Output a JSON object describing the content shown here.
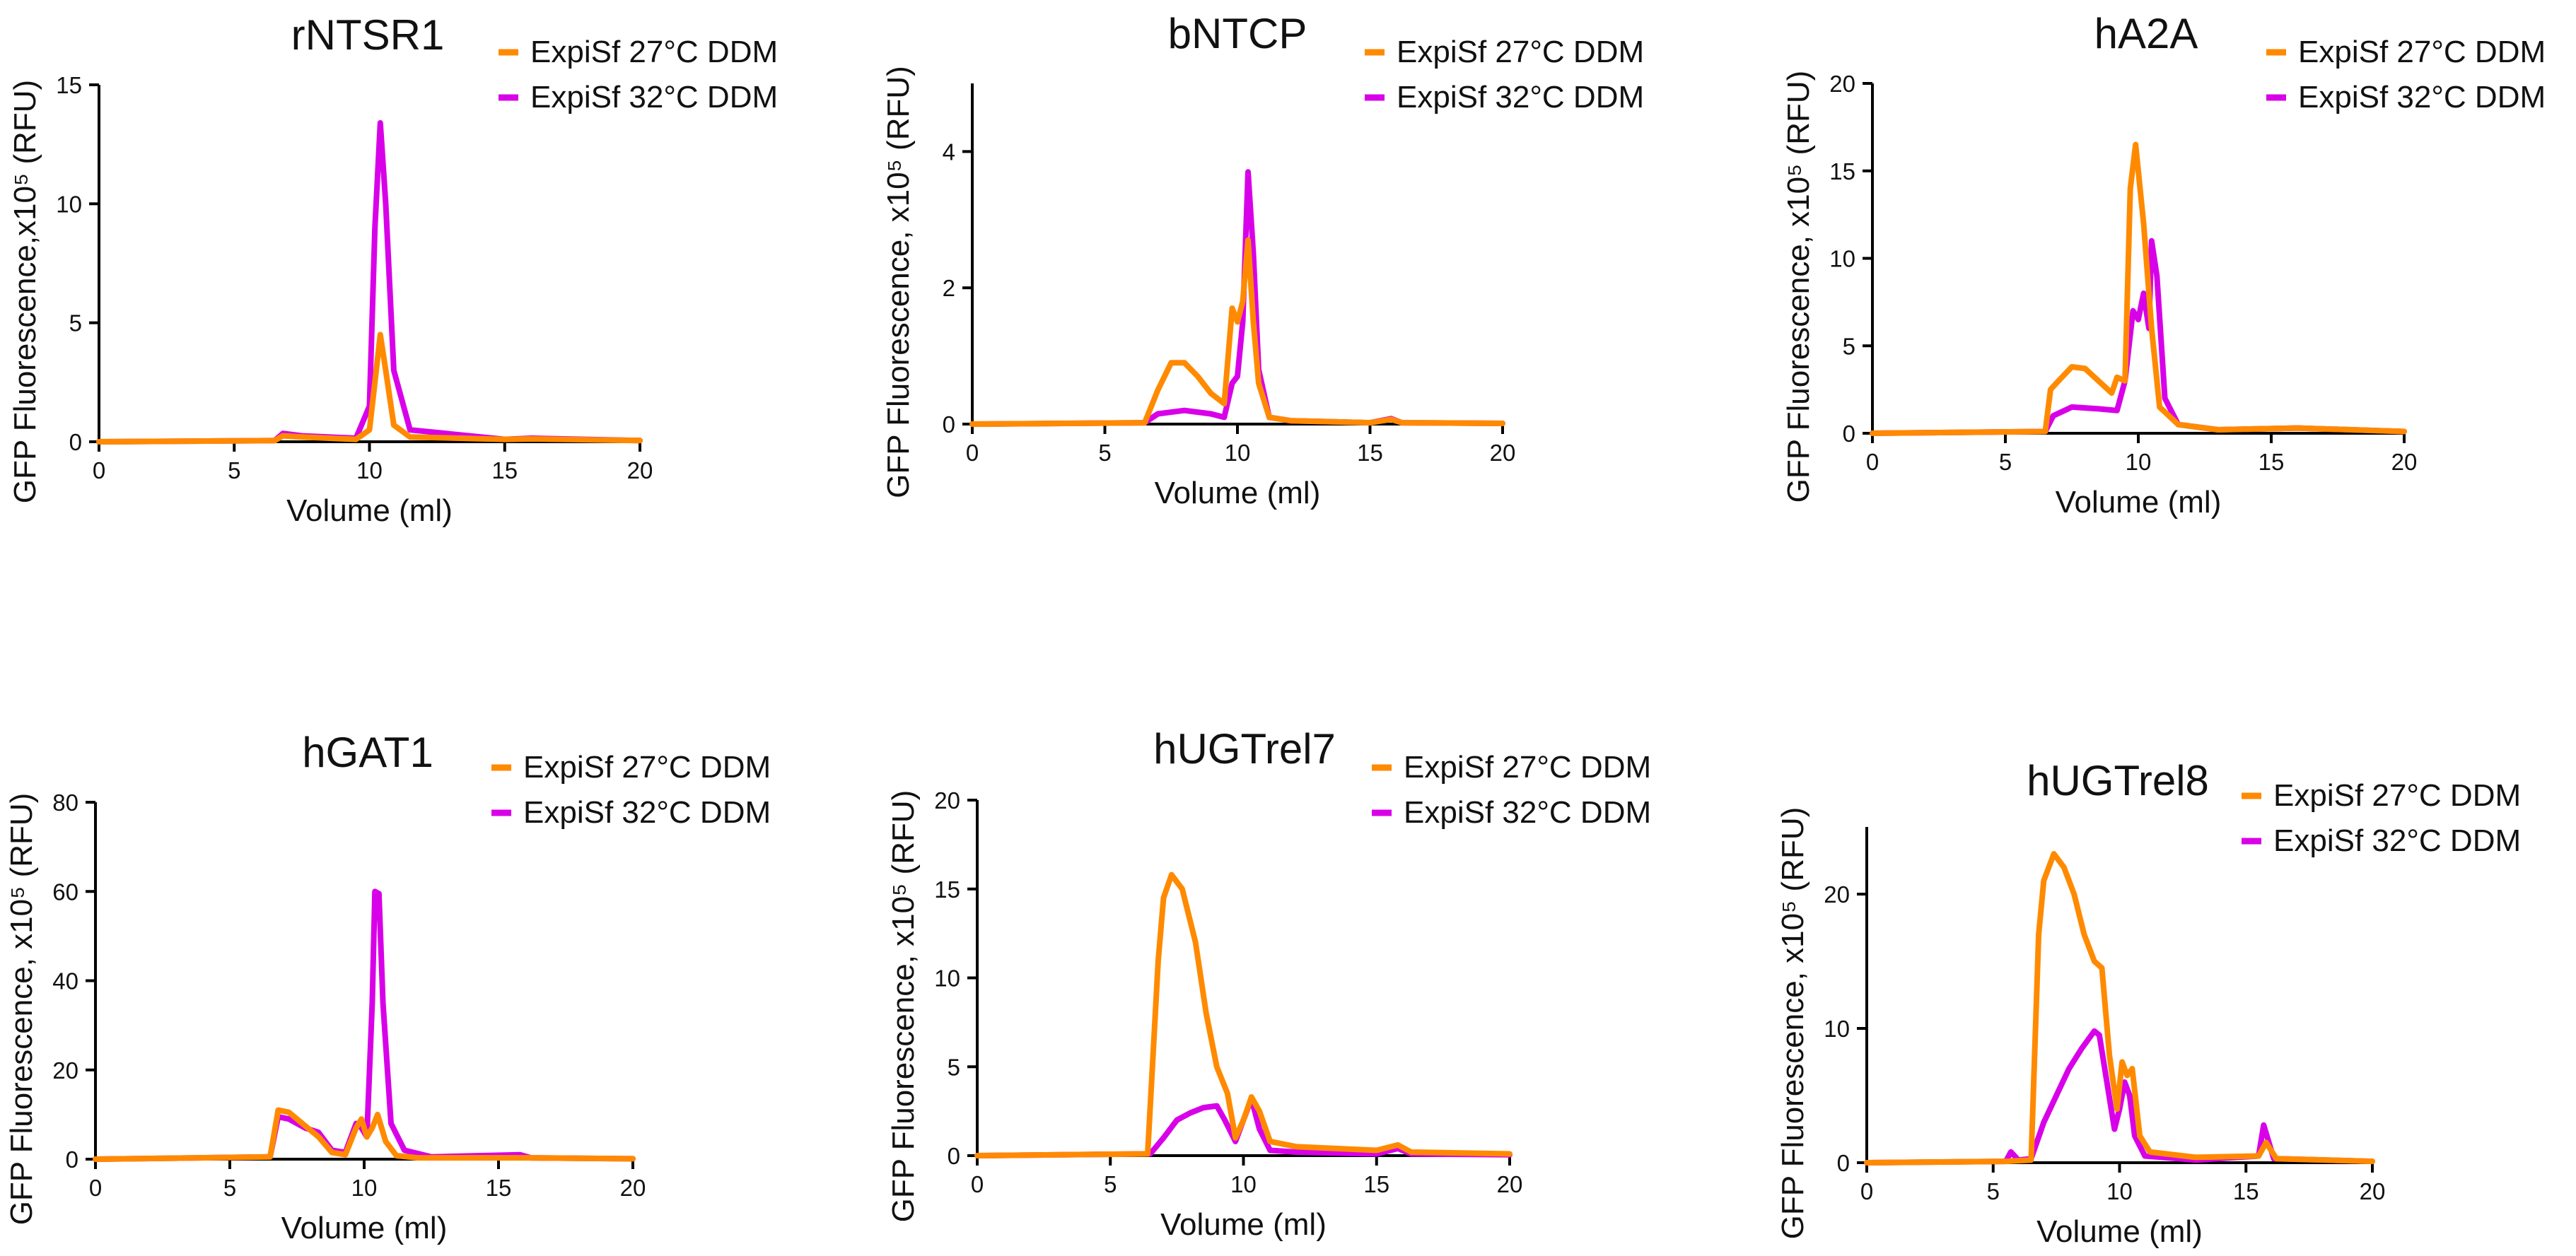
{
  "colors": {
    "s27": "#ff8a00",
    "s32": "#d800e8"
  },
  "legend": {
    "s27": "ExpiSf 27°C DDM",
    "s32": "ExpiSf 32°C DDM"
  },
  "chart_data": [
    {
      "type": "line",
      "title": "rNTSR1",
      "xlabel": "Volume (ml)",
      "ylabel": "GFP Fluorescence,x10⁵ (RFU)",
      "xlim": [
        0,
        20
      ],
      "ylim": [
        0,
        15
      ],
      "xticks": [
        "0",
        "5",
        "10",
        "15",
        "20"
      ],
      "yticks": [
        "0",
        "5",
        "10",
        "15"
      ],
      "series": [
        {
          "name": "ExpiSf 27°C DDM",
          "color": "#ff8a00",
          "x": [
            0,
            6.5,
            6.8,
            7.5,
            9.5,
            10.0,
            10.2,
            10.4,
            10.6,
            10.9,
            11.5,
            15.0,
            16.0,
            20.0
          ],
          "y": [
            0,
            0.05,
            0.25,
            0.2,
            0.1,
            0.5,
            2.5,
            4.5,
            3.0,
            0.7,
            0.2,
            0.1,
            0.12,
            0.05
          ]
        },
        {
          "name": "ExpiSf 32°C DDM",
          "color": "#d800e8",
          "x": [
            0,
            6.5,
            6.8,
            7.5,
            9.5,
            10.0,
            10.2,
            10.4,
            10.6,
            10.9,
            11.5,
            15.0,
            16.0,
            20.0
          ],
          "y": [
            0,
            0.05,
            0.35,
            0.25,
            0.15,
            1.5,
            9.0,
            13.4,
            10.0,
            3.0,
            0.5,
            0.1,
            0.15,
            0.05
          ]
        }
      ]
    },
    {
      "type": "line",
      "title": "bNTCP",
      "xlabel": "Volume (ml)",
      "ylabel": "GFP Fluorescence, x10⁵ (RFU)",
      "xlim": [
        0,
        20
      ],
      "ylim": [
        0,
        5
      ],
      "xticks": [
        "0",
        "5",
        "10",
        "15",
        "20"
      ],
      "yticks": [
        "0",
        "2",
        "4"
      ],
      "series": [
        {
          "name": "ExpiSf 27°C DDM",
          "color": "#ff8a00",
          "x": [
            0,
            6.5,
            7.0,
            7.5,
            8.0,
            8.5,
            9.0,
            9.5,
            9.8,
            10.0,
            10.2,
            10.4,
            10.6,
            10.8,
            11.2,
            12.0,
            15.0,
            15.8,
            16.2,
            20.0
          ],
          "y": [
            0,
            0.02,
            0.5,
            0.9,
            0.9,
            0.7,
            0.45,
            0.3,
            1.7,
            1.5,
            1.8,
            2.7,
            1.5,
            0.6,
            0.1,
            0.05,
            0.02,
            0.07,
            0.02,
            0.01
          ]
        },
        {
          "name": "ExpiSf 32°C DDM",
          "color": "#d800e8",
          "x": [
            0,
            6.5,
            7.0,
            8.0,
            9.0,
            9.5,
            9.8,
            10.0,
            10.2,
            10.4,
            10.6,
            10.8,
            11.2,
            12.0,
            15.0,
            15.8,
            16.2,
            20.0
          ],
          "y": [
            0,
            0.02,
            0.15,
            0.2,
            0.15,
            0.1,
            0.6,
            0.7,
            1.5,
            3.7,
            2.5,
            0.8,
            0.1,
            0.05,
            0.02,
            0.08,
            0.02,
            0.01
          ]
        }
      ]
    },
    {
      "type": "line",
      "title": "hA2A",
      "xlabel": "Volume (ml)",
      "ylabel": "GFP Fluorescence, x10⁵ (RFU)",
      "xlim": [
        0,
        20
      ],
      "ylim": [
        0,
        20
      ],
      "xticks": [
        "0",
        "5",
        "10",
        "15",
        "20"
      ],
      "yticks": [
        "0",
        "5",
        "10",
        "15",
        "20"
      ],
      "series": [
        {
          "name": "ExpiSf 27°C DDM",
          "color": "#ff8a00",
          "x": [
            0,
            6.5,
            6.7,
            7.0,
            7.5,
            8.0,
            8.5,
            9.0,
            9.2,
            9.5,
            9.7,
            9.9,
            10.2,
            10.5,
            10.8,
            11.5,
            13.0,
            16.0,
            20.0
          ],
          "y": [
            0,
            0.1,
            2.5,
            3.0,
            3.8,
            3.7,
            3.0,
            2.3,
            3.2,
            3.0,
            14.0,
            16.5,
            12.0,
            6.0,
            1.5,
            0.5,
            0.2,
            0.3,
            0.1
          ]
        },
        {
          "name": "ExpiSf 32°C DDM",
          "color": "#d800e8",
          "x": [
            0,
            6.5,
            6.8,
            7.5,
            8.5,
            9.2,
            9.5,
            9.8,
            10.0,
            10.2,
            10.4,
            10.5,
            10.7,
            11.0,
            11.5,
            13.0,
            16.0,
            20.0
          ],
          "y": [
            0,
            0.1,
            1.0,
            1.5,
            1.4,
            1.3,
            3.0,
            7.0,
            6.5,
            8.0,
            6.0,
            11.0,
            9.0,
            2.0,
            0.5,
            0.2,
            0.3,
            0.1
          ]
        }
      ]
    },
    {
      "type": "line",
      "title": "hGAT1",
      "xlabel": "Volume (ml)",
      "ylabel": "GFP Fluorescence, x10⁵ (RFU)",
      "xlim": [
        0,
        20
      ],
      "ylim": [
        0,
        80
      ],
      "xticks": [
        "0",
        "5",
        "10",
        "15",
        "20"
      ],
      "yticks": [
        "0",
        "20",
        "40",
        "60",
        "80"
      ],
      "series": [
        {
          "name": "ExpiSf 27°C DDM",
          "color": "#ff8a00",
          "x": [
            0,
            6.5,
            6.8,
            7.2,
            7.8,
            8.3,
            8.8,
            9.3,
            9.7,
            9.9,
            10.1,
            10.3,
            10.5,
            10.8,
            11.2,
            12.0,
            16.0,
            20.0
          ],
          "y": [
            0,
            0.5,
            11.0,
            10.5,
            7.5,
            5.0,
            1.5,
            1.0,
            7.0,
            9.0,
            5.0,
            7.0,
            10.0,
            4.0,
            0.8,
            0.3,
            0.3,
            0.1
          ]
        },
        {
          "name": "ExpiSf 32°C DDM",
          "color": "#d800e8",
          "x": [
            0,
            6.5,
            6.8,
            7.2,
            7.8,
            8.3,
            8.8,
            9.3,
            9.7,
            9.9,
            10.1,
            10.3,
            10.4,
            10.55,
            10.7,
            11.0,
            11.5,
            12.5,
            15.8,
            16.2,
            20.0
          ],
          "y": [
            0,
            0.5,
            9.5,
            9.0,
            7.0,
            6.0,
            2.0,
            1.5,
            8.0,
            7.0,
            5.0,
            35.0,
            60.0,
            59.5,
            35.0,
            8.0,
            2.0,
            0.5,
            1.0,
            0.3,
            0.1
          ]
        }
      ]
    },
    {
      "type": "line",
      "title": "hUGTrel7",
      "xlabel": "Volume (ml)",
      "ylabel": "GFP Fluorescence, x10⁵ (RFU)",
      "xlim": [
        0,
        20
      ],
      "ylim": [
        0,
        20
      ],
      "xticks": [
        "0",
        "5",
        "10",
        "15",
        "20"
      ],
      "yticks": [
        "0",
        "5",
        "10",
        "15",
        "20"
      ],
      "series": [
        {
          "name": "ExpiSf 27°C DDM",
          "color": "#ff8a00",
          "x": [
            0,
            6.4,
            6.8,
            7.0,
            7.3,
            7.7,
            8.2,
            8.6,
            9.0,
            9.4,
            9.7,
            10.0,
            10.3,
            10.6,
            11.0,
            12.0,
            15.0,
            15.8,
            16.3,
            20.0
          ],
          "y": [
            0,
            0.1,
            11.0,
            14.5,
            15.8,
            15.0,
            12.0,
            8.0,
            5.0,
            3.5,
            1.0,
            2.0,
            3.3,
            2.5,
            0.8,
            0.5,
            0.3,
            0.6,
            0.2,
            0.1
          ]
        },
        {
          "name": "ExpiSf 32°C DDM",
          "color": "#d800e8",
          "x": [
            0,
            6.5,
            7.0,
            7.5,
            8.0,
            8.5,
            9.0,
            9.3,
            9.7,
            10.0,
            10.3,
            10.6,
            11.0,
            12.0,
            15.0,
            15.8,
            16.3,
            20.0
          ],
          "y": [
            0,
            0.1,
            1.0,
            2.0,
            2.4,
            2.7,
            2.8,
            2.0,
            0.8,
            2.0,
            3.2,
            1.5,
            0.3,
            0.2,
            0.1,
            0.4,
            0.1,
            0.05
          ]
        }
      ]
    },
    {
      "type": "line",
      "title": "hUGTrel8",
      "xlabel": "Volume (ml)",
      "ylabel": "GFP Fluorescence, x10⁵ (RFU)",
      "xlim": [
        0,
        20
      ],
      "ylim": [
        0,
        25
      ],
      "xticks": [
        "0",
        "5",
        "10",
        "15",
        "20"
      ],
      "yticks": [
        "0",
        "10",
        "20"
      ],
      "series": [
        {
          "name": "ExpiSf 27°C DDM",
          "color": "#ff8a00",
          "x": [
            0,
            5.5,
            6.5,
            6.8,
            7.0,
            7.4,
            7.8,
            8.2,
            8.6,
            9.0,
            9.3,
            9.6,
            9.9,
            10.1,
            10.3,
            10.5,
            10.8,
            11.2,
            13.0,
            15.5,
            15.8,
            16.2,
            20.0
          ],
          "y": [
            0,
            0.1,
            0.2,
            17.0,
            21.0,
            23.0,
            22.0,
            20.0,
            17.0,
            15.0,
            14.5,
            8.0,
            4.0,
            7.5,
            6.5,
            7.0,
            2.0,
            0.8,
            0.4,
            0.5,
            1.5,
            0.3,
            0.1
          ]
        },
        {
          "name": "ExpiSf 32°C DDM",
          "color": "#d800e8",
          "x": [
            0,
            5.5,
            5.7,
            6.0,
            6.5,
            7.0,
            7.5,
            8.0,
            8.5,
            9.0,
            9.2,
            9.5,
            9.8,
            10.0,
            10.2,
            10.4,
            10.6,
            11.0,
            13.0,
            15.5,
            15.7,
            16.1,
            20.0
          ],
          "y": [
            0,
            0.1,
            0.8,
            0.2,
            0.3,
            3.0,
            5.0,
            7.0,
            8.5,
            9.8,
            9.5,
            6.0,
            2.5,
            4.0,
            6.0,
            5.0,
            2.0,
            0.5,
            0.2,
            0.5,
            2.8,
            0.3,
            0.1
          ]
        }
      ]
    }
  ]
}
